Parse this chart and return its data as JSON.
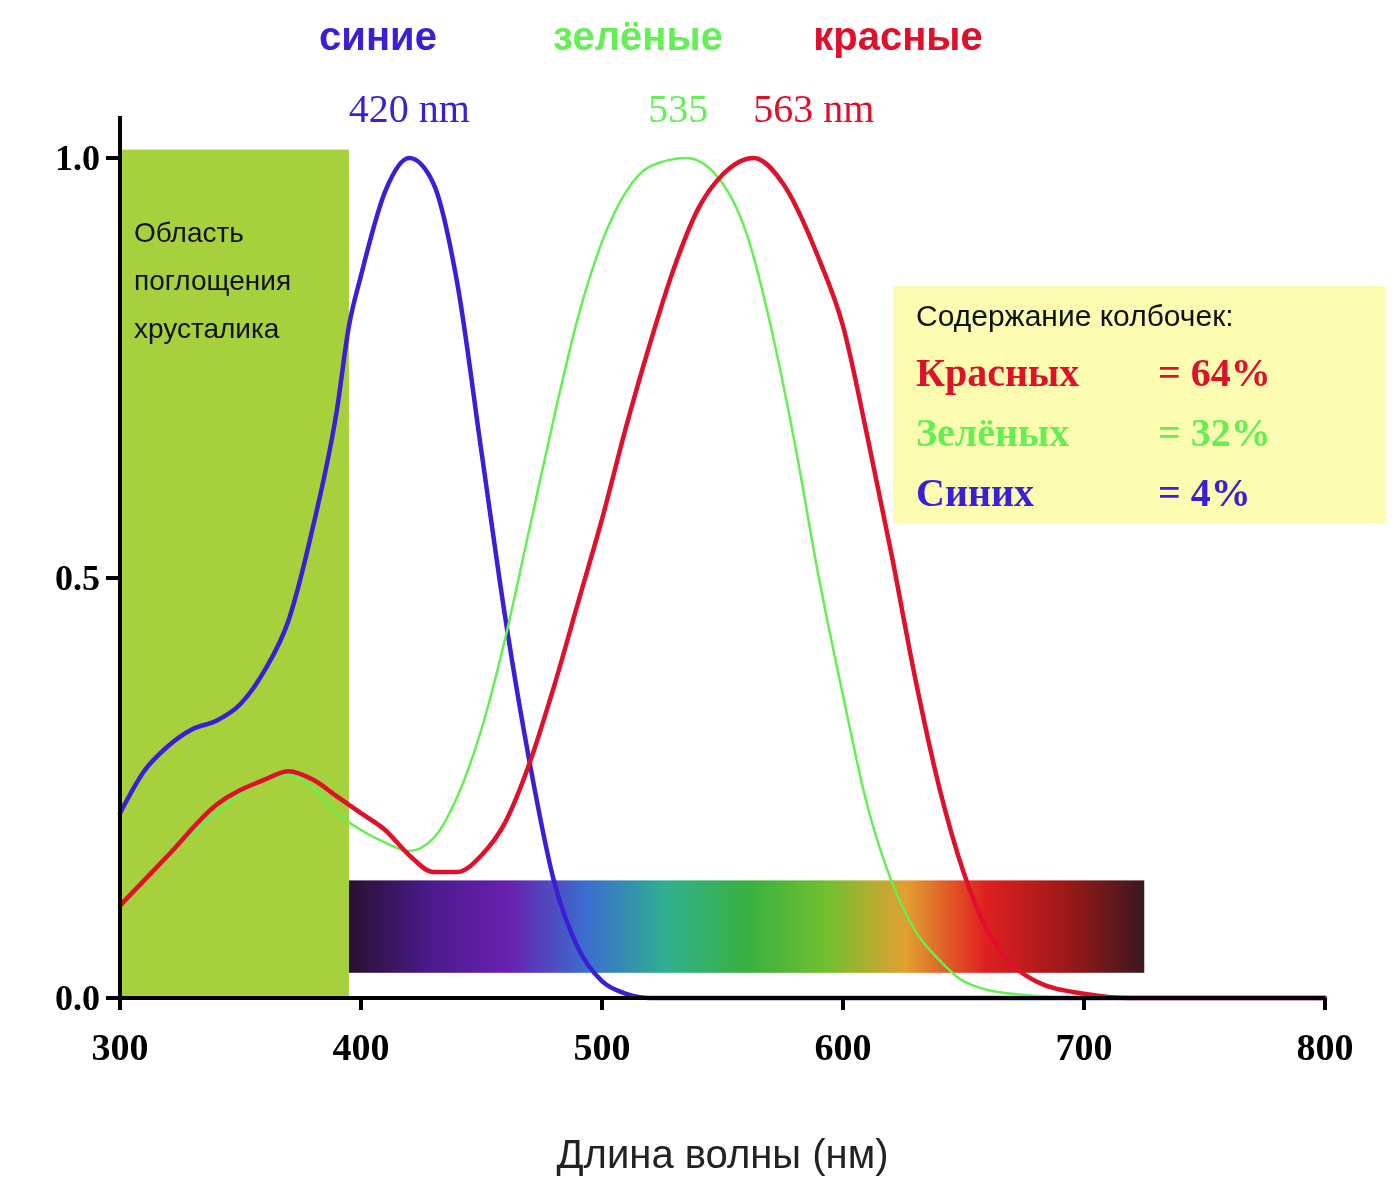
{
  "chart_data": {
    "type": "line",
    "xlabel": "Длина волны (нм)",
    "xlim": [
      300,
      800
    ],
    "ylim": [
      0,
      1.05
    ],
    "xticks": [
      300,
      400,
      500,
      600,
      700,
      800
    ],
    "yticks": [
      {
        "value": 0,
        "label": "0.0"
      },
      {
        "value": 0.5,
        "label": "0.5"
      },
      {
        "value": 1,
        "label": "1.0"
      }
    ],
    "grid": false,
    "legend": "top",
    "series": [
      {
        "name": "синие",
        "color": "#3a1fd6",
        "x": [
          300,
          310,
          320,
          330,
          340,
          350,
          360,
          370,
          380,
          390,
          395,
          400,
          410,
          420,
          430,
          440,
          450,
          460,
          470,
          480,
          490,
          500,
          510,
          520,
          800
        ],
        "values": [
          0.22,
          0.27,
          0.3,
          0.32,
          0.33,
          0.35,
          0.39,
          0.45,
          0.56,
          0.7,
          0.8,
          0.86,
          0.96,
          1,
          0.97,
          0.85,
          0.65,
          0.45,
          0.28,
          0.14,
          0.06,
          0.02,
          0.005,
          0,
          0
        ]
      },
      {
        "name": "зелёные",
        "color": "#66ee55",
        "x": [
          300,
          320,
          340,
          360,
          370,
          380,
          390,
          400,
          410,
          420,
          430,
          440,
          450,
          460,
          470,
          480,
          490,
          500,
          510,
          520,
          535,
          550,
          560,
          570,
          580,
          590,
          600,
          610,
          620,
          630,
          640,
          650,
          670,
          700,
          800
        ],
        "values": [
          0.11,
          0.17,
          0.22,
          0.26,
          0.265,
          0.25,
          0.22,
          0.2,
          0.185,
          0.175,
          0.19,
          0.24,
          0.32,
          0.43,
          0.56,
          0.69,
          0.81,
          0.9,
          0.96,
          0.99,
          1,
          0.97,
          0.91,
          0.8,
          0.66,
          0.5,
          0.36,
          0.23,
          0.14,
          0.08,
          0.045,
          0.02,
          0.005,
          0,
          0
        ]
      },
      {
        "name": "красные",
        "color": "#e0102a",
        "x": [
          300,
          320,
          340,
          360,
          370,
          380,
          390,
          400,
          410,
          420,
          430,
          440,
          450,
          460,
          470,
          480,
          490,
          500,
          510,
          520,
          530,
          540,
          550,
          563,
          575,
          590,
          600,
          610,
          620,
          630,
          640,
          650,
          660,
          670,
          680,
          700,
          720,
          800
        ],
        "values": [
          0.11,
          0.17,
          0.23,
          0.26,
          0.27,
          0.26,
          0.24,
          0.22,
          0.2,
          0.17,
          0.15,
          0.15,
          0.17,
          0.21,
          0.28,
          0.37,
          0.47,
          0.57,
          0.68,
          0.78,
          0.87,
          0.94,
          0.98,
          1,
          0.97,
          0.88,
          0.8,
          0.67,
          0.53,
          0.38,
          0.25,
          0.15,
          0.08,
          0.04,
          0.02,
          0.005,
          0,
          0
        ]
      }
    ],
    "bands": [
      {
        "axis": "x",
        "from": 300,
        "to": 395,
        "label": "Область поглощения хрусталика",
        "color": "#a6d13c"
      }
    ],
    "annotations": [
      {
        "text": "420 nm",
        "x": 420,
        "y": 1
      },
      {
        "text": "535",
        "x": 535,
        "y": 1
      },
      {
        "text": "563 nm",
        "x": 563,
        "y": 1
      },
      "Содержание колбочек:",
      "Красных = 64%",
      "Зелёных = 32%",
      "Синих = 4%"
    ]
  }
}
